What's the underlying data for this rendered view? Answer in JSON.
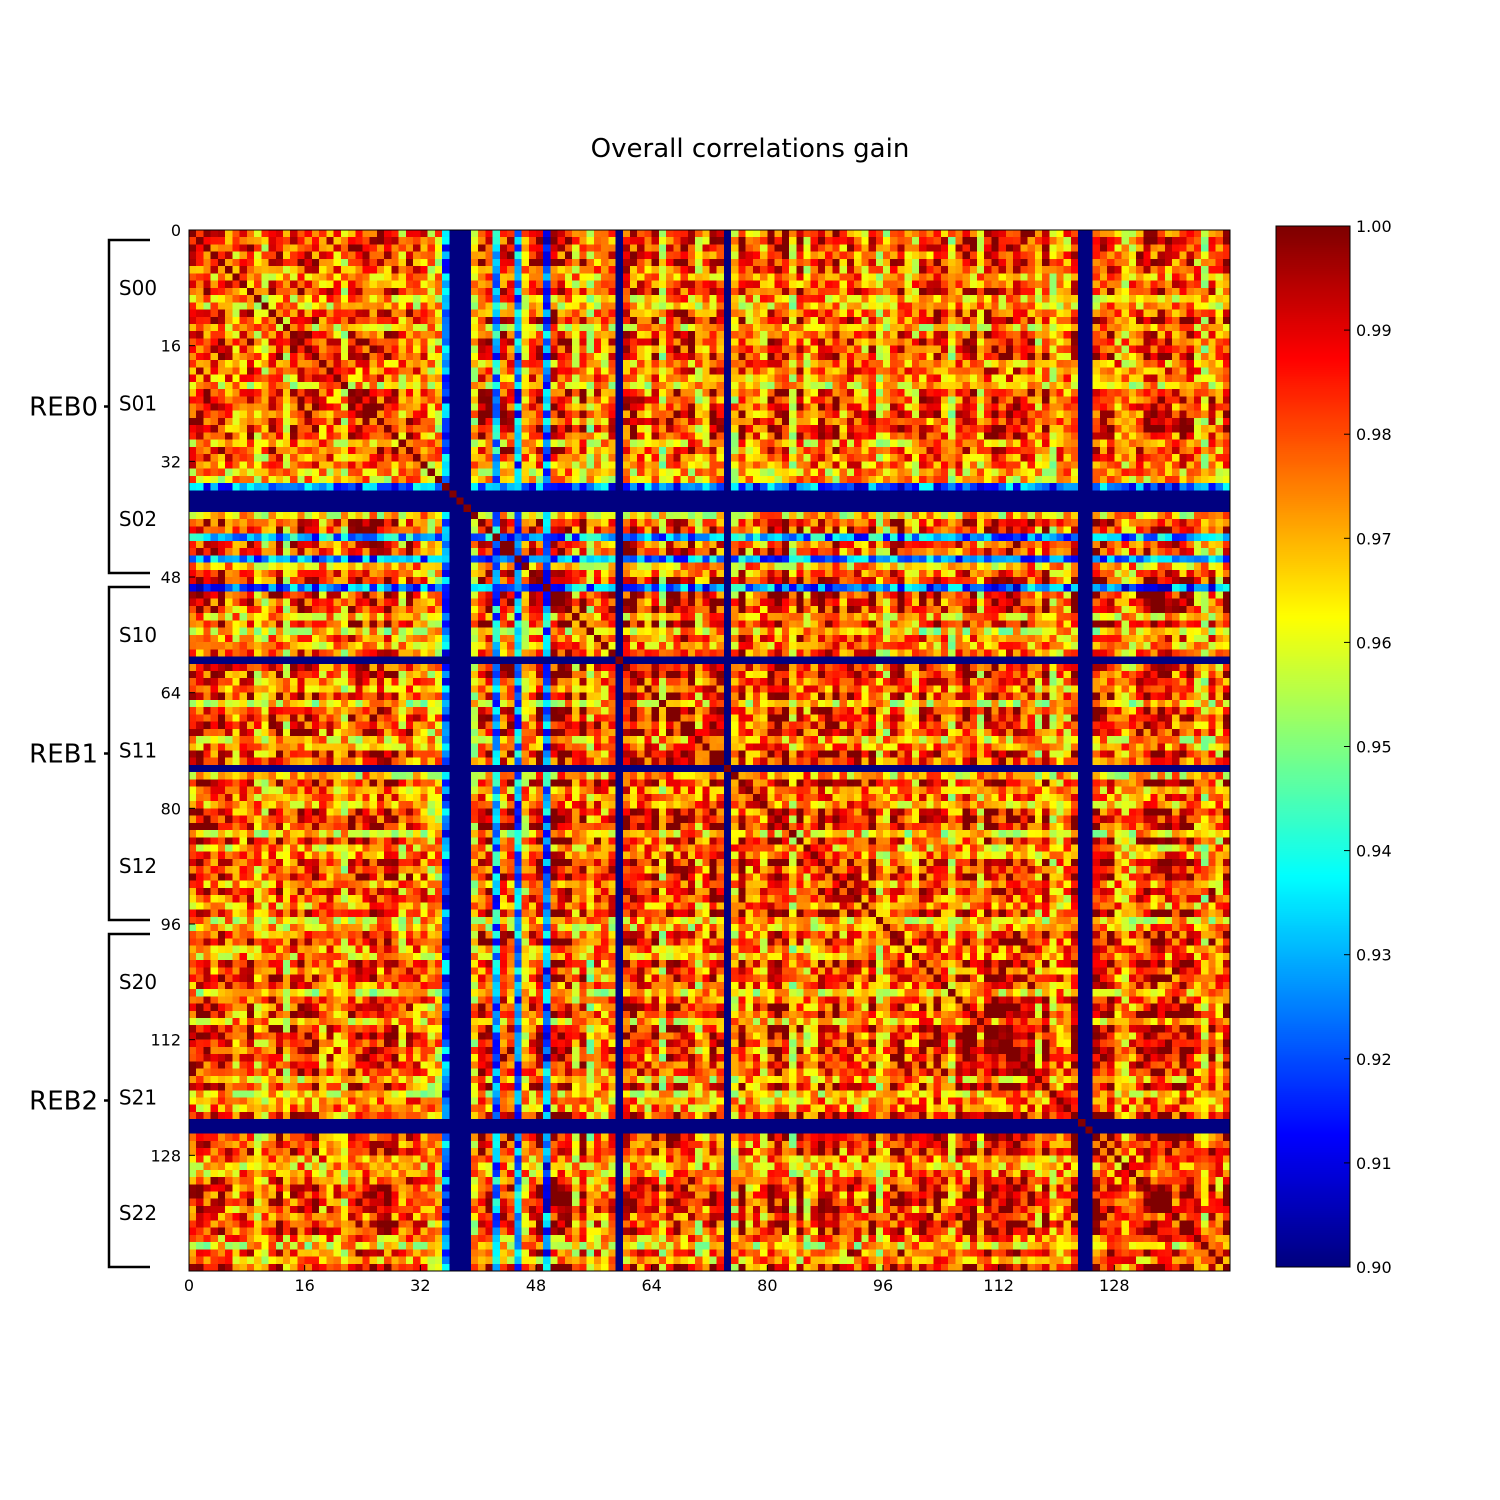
{
  "chart_data": {
    "type": "heatmap",
    "title": "Overall correlations gain",
    "xlabel": "",
    "ylabel": "",
    "n": 144,
    "x_ticks": [
      "0",
      "16",
      "32",
      "48",
      "64",
      "80",
      "96",
      "112",
      "128"
    ],
    "y_ticks": [
      "0",
      "16",
      "32",
      "48",
      "64",
      "80",
      "96",
      "112",
      "128"
    ],
    "tick_step": 16,
    "colormap": "jet",
    "vmin": 0.9,
    "vmax": 1.0,
    "colorbar_ticks": [
      "0.90",
      "0.91",
      "0.92",
      "0.93",
      "0.94",
      "0.95",
      "0.96",
      "0.97",
      "0.98",
      "0.99",
      "1.00"
    ],
    "low_channels": [
      36,
      37,
      38,
      59,
      74,
      123,
      124
    ],
    "partial_low_channels": [
      35,
      42,
      45,
      49
    ],
    "diagonal_value": 1.0,
    "value_range_typical": [
      0.95,
      1.0
    ],
    "segment_labels": [
      "S00",
      "S01",
      "S02",
      "S10",
      "S11",
      "S12",
      "S20",
      "S21",
      "S22"
    ],
    "channels_per_segment": 16,
    "group_labels": [
      "REB0",
      "REB1",
      "REB2"
    ],
    "segments_per_group": 3,
    "grid": false
  }
}
